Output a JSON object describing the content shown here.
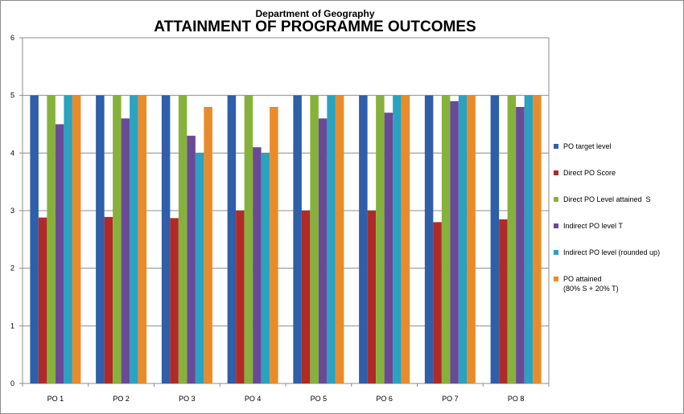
{
  "chart_data": {
    "type": "bar",
    "subtitle": "Department of Geography",
    "title": "ATTAINMENT OF PROGRAMME OUTCOMES",
    "categories": [
      "PO 1",
      "PO 2",
      "PO 3",
      "PO 4",
      "PO 5",
      "PO 6",
      "PO 7",
      "PO 8"
    ],
    "ylim": [
      0,
      6
    ],
    "yticks": [
      "0",
      "1",
      "2",
      "3",
      "4",
      "5",
      "6"
    ],
    "grid": true,
    "legend_position": "right",
    "series": [
      {
        "name": "PO target level",
        "color": "#2e5fa8",
        "values": [
          5,
          5,
          5,
          5,
          5,
          5,
          5,
          5
        ]
      },
      {
        "name": "Direct PO Score",
        "color": "#b02b28",
        "values": [
          2.88,
          2.89,
          2.87,
          3.0,
          3.0,
          3.0,
          2.8,
          2.85
        ]
      },
      {
        "name": "Direct PO Level attained  S",
        "color": "#86b23c",
        "values": [
          5,
          5,
          5,
          5,
          5,
          5,
          5,
          5
        ]
      },
      {
        "name": "Indirect PO level T",
        "color": "#6a4a97",
        "values": [
          4.5,
          4.6,
          4.3,
          4.1,
          4.6,
          4.7,
          4.9,
          4.8
        ]
      },
      {
        "name": "Indirect PO level (rounded up)",
        "color": "#2aa2c0",
        "values": [
          5,
          5,
          4,
          4,
          5,
          5,
          5,
          5
        ]
      },
      {
        "name": "PO attained\n(80% S + 20% T)",
        "color": "#ea8b2a",
        "values": [
          5,
          5,
          4.8,
          4.8,
          5,
          5,
          5,
          5
        ]
      }
    ]
  }
}
